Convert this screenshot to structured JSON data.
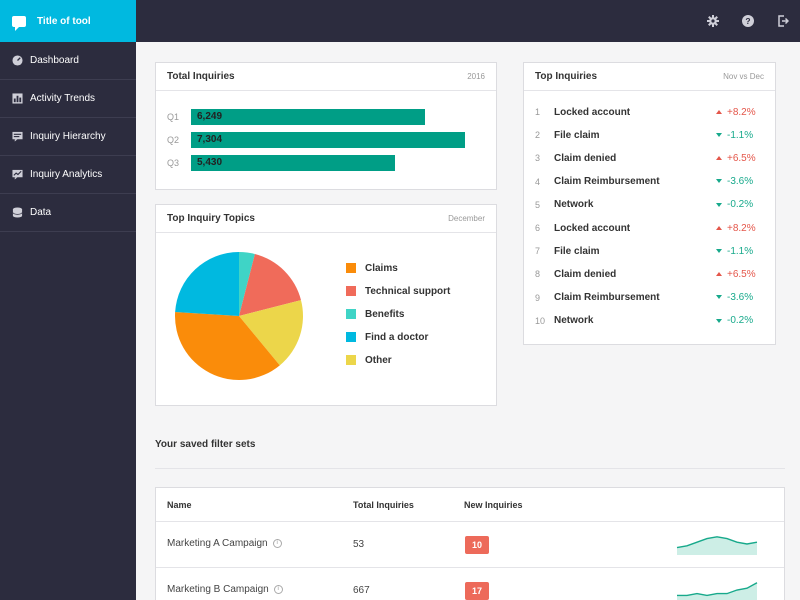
{
  "app": {
    "title": "Title of tool"
  },
  "sidebar": {
    "items": [
      {
        "label": "Dashboard",
        "icon": "dashboard-icon"
      },
      {
        "label": "Activity Trends",
        "icon": "activity-icon"
      },
      {
        "label": "Inquiry Hierarchy",
        "icon": "hierarchy-icon"
      },
      {
        "label": "Inquiry Analytics",
        "icon": "analytics-icon"
      },
      {
        "label": "Data",
        "icon": "database-icon"
      }
    ]
  },
  "topbar": {
    "icons": [
      "gear-icon",
      "help-icon",
      "logout-icon"
    ]
  },
  "total_inquiries": {
    "title": "Total Inquiries",
    "meta": "2016",
    "chart_data": {
      "type": "bar",
      "orientation": "horizontal",
      "categories": [
        "Q1",
        "Q2",
        "Q3"
      ],
      "values": [
        6249,
        7304,
        5430
      ],
      "value_labels": [
        "6,249",
        "7,304",
        "5,430"
      ],
      "xlim": [
        0,
        8000
      ],
      "color": "#009e86"
    }
  },
  "top_topics": {
    "title": "Top Inquiry Topics",
    "meta": "December",
    "chart_data": {
      "type": "pie",
      "labels": [
        "Claims",
        "Technical support",
        "Benefits",
        "Find a doctor",
        "Other"
      ],
      "values": [
        37,
        17,
        4,
        24,
        18
      ],
      "colors": [
        "#fa8c0a",
        "#f06b5a",
        "#3fd4c6",
        "#00b9e0",
        "#ecd64a"
      ]
    }
  },
  "top_inquiries": {
    "title": "Top Inquiries",
    "meta": "Nov vs Dec",
    "items": [
      {
        "num": "1",
        "label": "Locked account",
        "change": "+8.2%",
        "dir": "up"
      },
      {
        "num": "2",
        "label": "File claim",
        "change": "-1.1%",
        "dir": "down"
      },
      {
        "num": "3",
        "label": "Claim denied",
        "change": "+6.5%",
        "dir": "up"
      },
      {
        "num": "4",
        "label": "Claim Reimbursement",
        "change": "-3.6%",
        "dir": "down"
      },
      {
        "num": "5",
        "label": "Network",
        "change": "-0.2%",
        "dir": "down"
      },
      {
        "num": "6",
        "label": "Locked account",
        "change": "+8.2%",
        "dir": "up"
      },
      {
        "num": "7",
        "label": "File claim",
        "change": "-1.1%",
        "dir": "down"
      },
      {
        "num": "8",
        "label": "Claim denied",
        "change": "+6.5%",
        "dir": "up"
      },
      {
        "num": "9",
        "label": "Claim Reimbursement",
        "change": "-3.6%",
        "dir": "down"
      },
      {
        "num": "10",
        "label": "Network",
        "change": "-0.2%",
        "dir": "down"
      }
    ]
  },
  "saved_filters": {
    "title": "Your saved filter sets",
    "columns": [
      "Name",
      "Total Inquiries",
      "New Inquiries"
    ],
    "rows": [
      {
        "name": "Marketing A Campaign",
        "total": "53",
        "new": "10",
        "trend": [
          3,
          4,
          6,
          8,
          9,
          8,
          6,
          5,
          6
        ]
      },
      {
        "name": "Marketing B Campaign",
        "total": "667",
        "new": "17",
        "trend": [
          2,
          2,
          3,
          2,
          3,
          3,
          5,
          6,
          9
        ]
      }
    ]
  }
}
